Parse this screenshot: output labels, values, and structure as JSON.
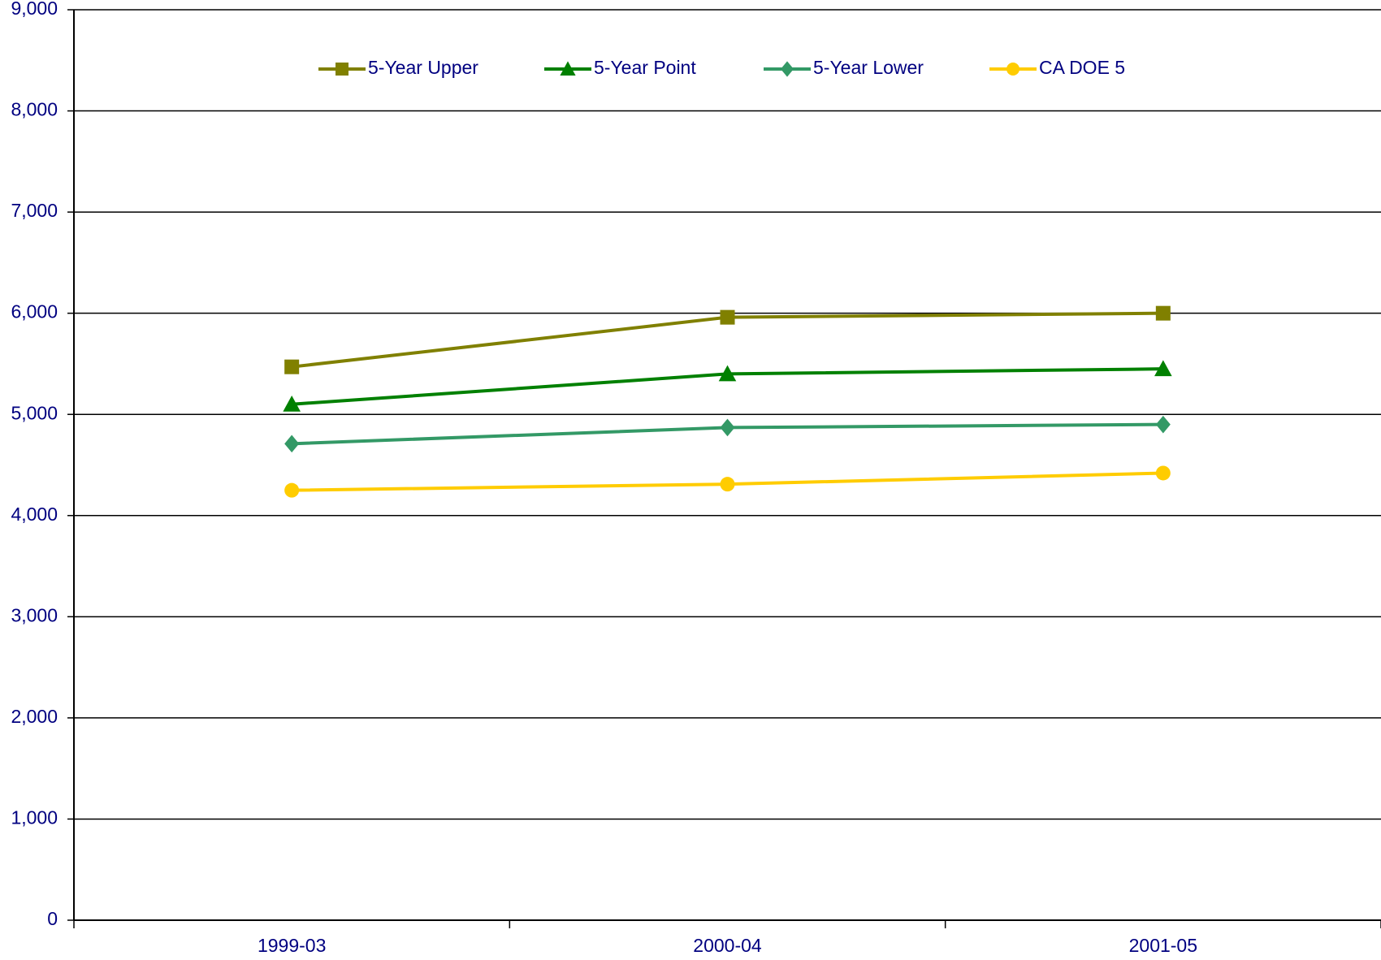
{
  "chart_data": {
    "type": "line",
    "categories": [
      "1999-03",
      "2000-04",
      "2001-05"
    ],
    "series": [
      {
        "name": "5-Year Upper",
        "color": "#808000",
        "marker": "square",
        "values": [
          5470,
          5960,
          6000
        ]
      },
      {
        "name": "5-Year Point",
        "color": "#008000",
        "marker": "triangle",
        "values": [
          5100,
          5400,
          5450
        ]
      },
      {
        "name": "5-Year Lower",
        "color": "#339966",
        "marker": "diamond",
        "values": [
          4710,
          4870,
          4900
        ]
      },
      {
        "name": "CA DOE 5",
        "color": "#ffcc00",
        "marker": "circle",
        "values": [
          4250,
          4310,
          4420
        ]
      }
    ],
    "ylim": [
      0,
      9000
    ],
    "yticks": [
      0,
      {
        "value": 1000,
        "label": "1,000"
      },
      {
        "value": 2000,
        "label": "2,000"
      },
      {
        "value": 3000,
        "label": "3,000"
      },
      {
        "value": 4000,
        "label": "4,000"
      },
      {
        "value": 5000,
        "label": "5,000"
      },
      {
        "value": 6000,
        "label": "6,000"
      },
      {
        "value": 7000,
        "label": "7,000"
      },
      {
        "value": 8000,
        "label": "8,000"
      },
      {
        "value": 9000,
        "label": "9,000"
      }
    ],
    "grid": true,
    "legend": "top"
  }
}
